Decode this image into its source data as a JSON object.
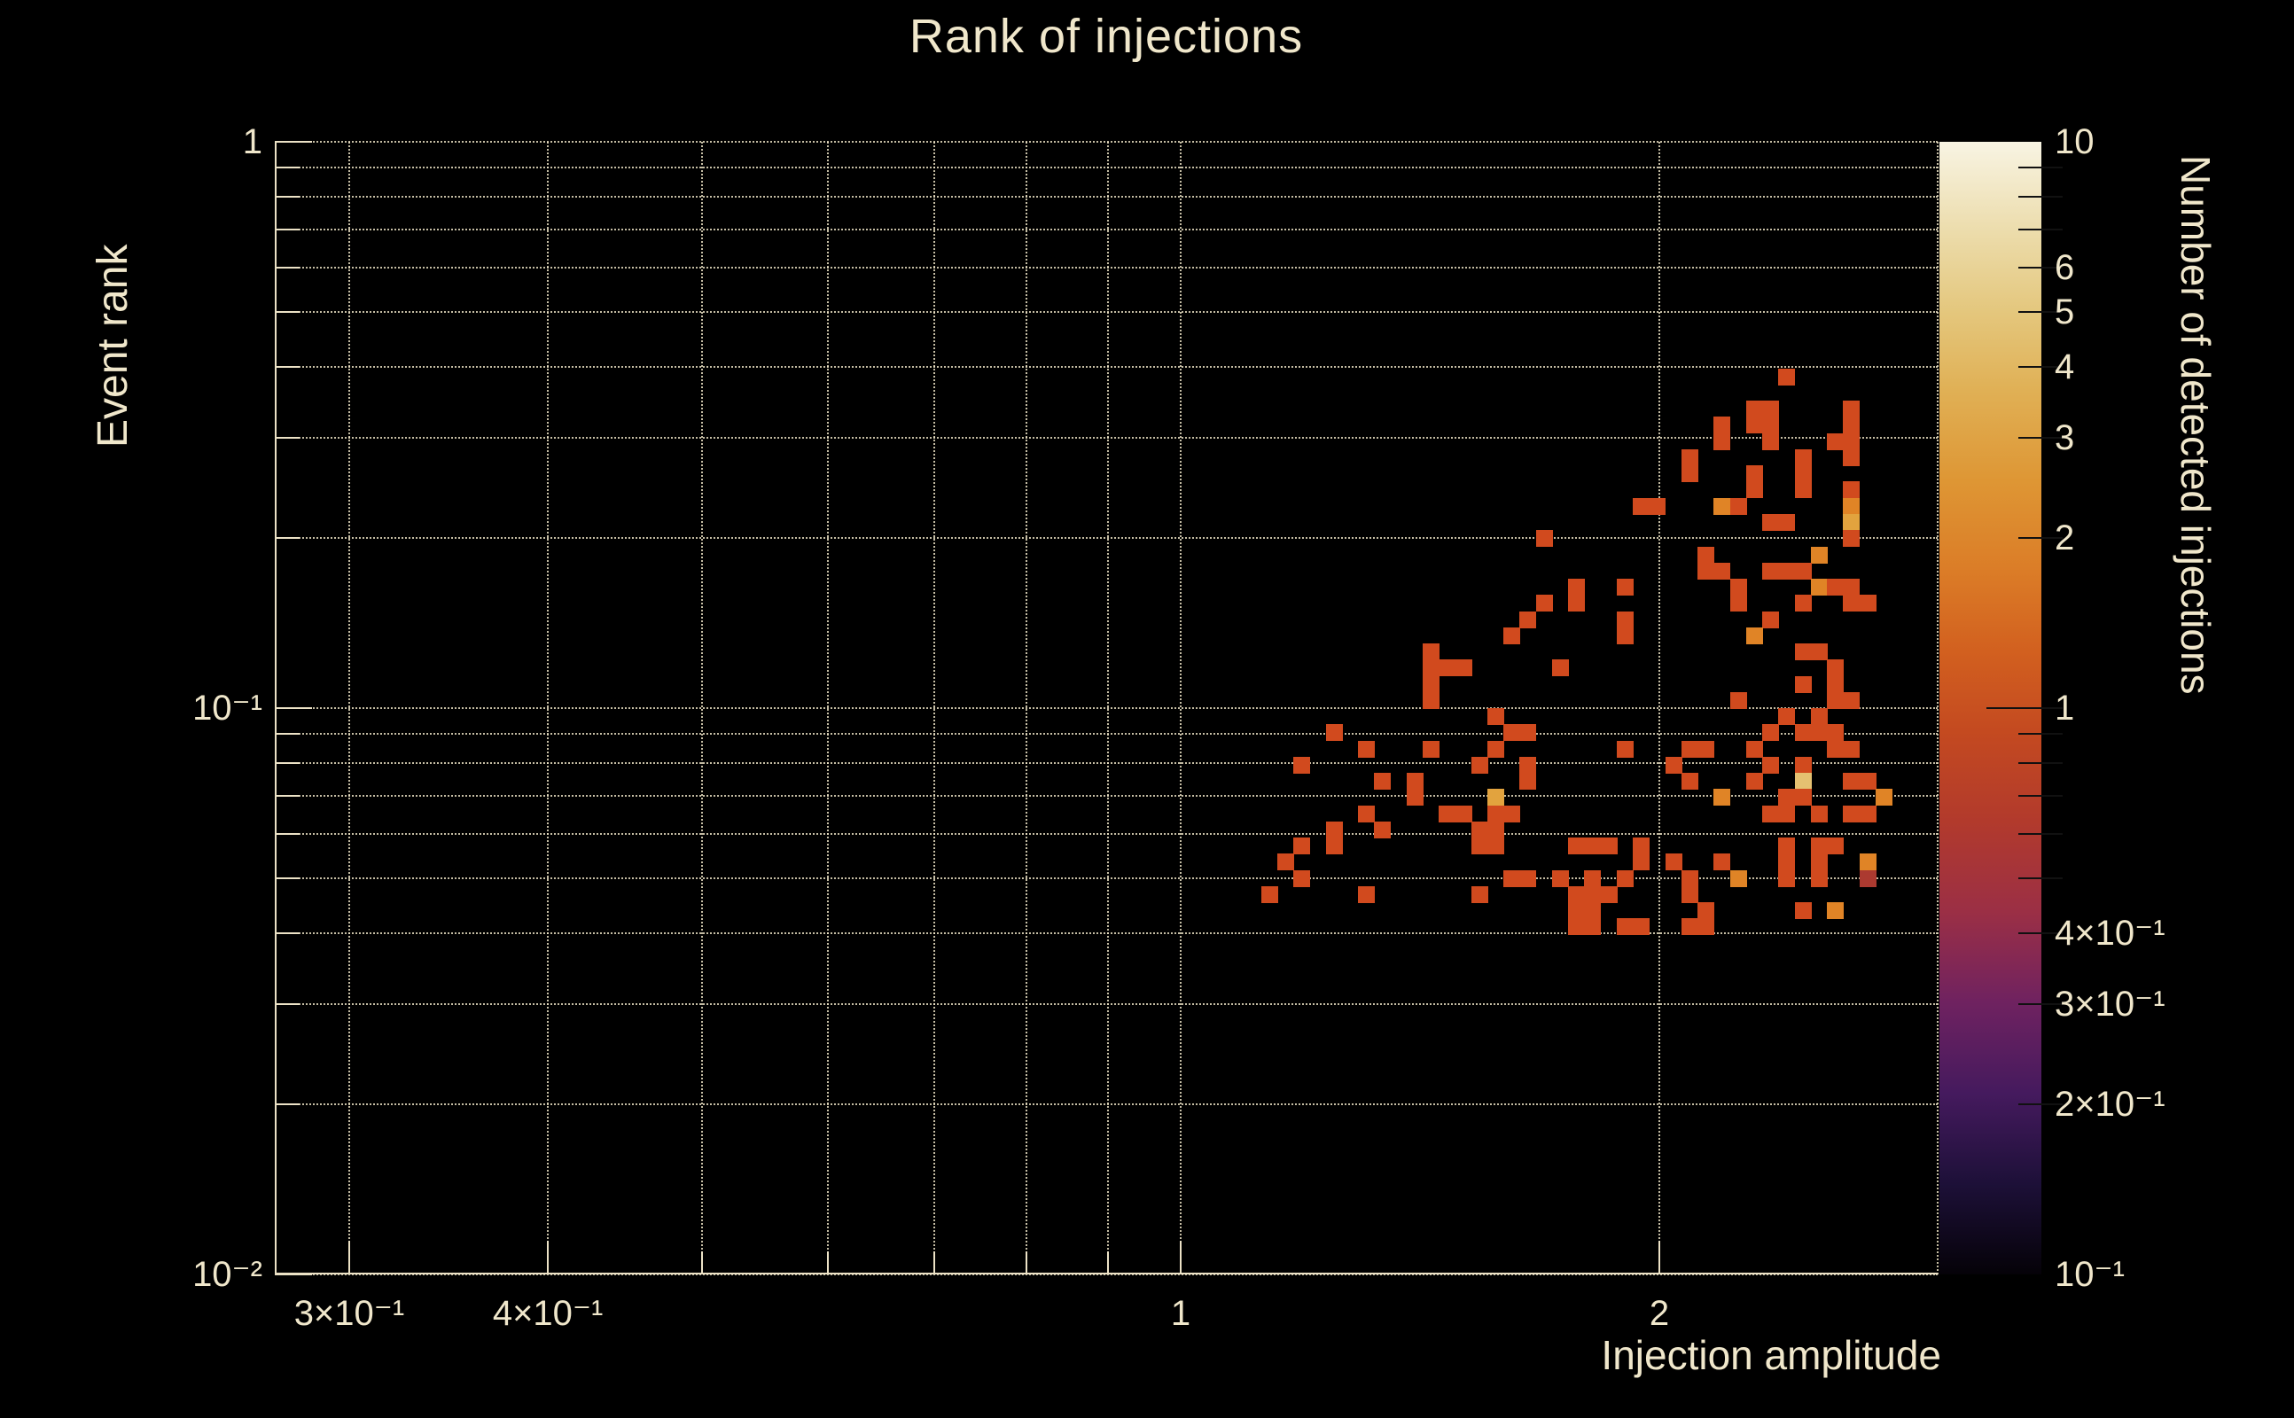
{
  "title": "Rank of injections",
  "colors": {
    "background": "#000000",
    "text": "#f0e7cb",
    "grid": "#f0e6c8",
    "frame": "#ece2c6",
    "cell_palette": {
      "0.8": "#ac3a30",
      "1": "#d14a1e",
      "2": "#e08426",
      "3": "#e2a33e",
      "5": "#e5c171"
    },
    "colorbar_top": "#f8f4e3",
    "colorbar_bottom": "#050208"
  },
  "axes": {
    "x": {
      "title": "Injection amplitude",
      "scale": "log",
      "range": [
        0.269,
        3.0
      ],
      "grid_values": [
        0.3,
        0.4,
        0.5,
        0.6,
        0.7,
        0.8,
        0.9,
        1,
        2,
        3
      ],
      "labeled_ticks": [
        {
          "v": 0.3,
          "t": "3×10⁻¹"
        },
        {
          "v": 0.4,
          "t": "4×10⁻¹"
        },
        {
          "v": 1,
          "t": "1"
        },
        {
          "v": 2,
          "t": "2"
        }
      ]
    },
    "y": {
      "title": "Event rank",
      "scale": "log",
      "range": [
        0.01,
        1.0
      ],
      "grid_values": [
        1,
        0.9,
        0.8,
        0.7,
        0.6,
        0.5,
        0.4,
        0.3,
        0.2,
        0.1,
        0.09,
        0.08,
        0.07,
        0.06,
        0.05,
        0.04,
        0.03,
        0.02,
        0.01
      ],
      "labeled_ticks": [
        {
          "v": 1,
          "t": "1"
        },
        {
          "v": 0.1,
          "t": "10⁻¹"
        },
        {
          "v": 0.01,
          "t": "10⁻²"
        }
      ]
    },
    "z": {
      "title": "Number of detected injections",
      "scale": "log",
      "range": [
        0.1,
        10
      ],
      "tick_values": [
        9,
        8,
        7,
        6,
        5,
        4,
        3,
        2,
        1,
        0.9,
        0.8,
        0.7,
        0.6,
        0.5,
        0.4,
        0.3,
        0.2
      ],
      "labeled_ticks": [
        {
          "v": 10,
          "t": "10"
        },
        {
          "v": 6,
          "t": "6"
        },
        {
          "v": 5,
          "t": "5"
        },
        {
          "v": 4,
          "t": "4"
        },
        {
          "v": 3,
          "t": "3"
        },
        {
          "v": 2,
          "t": "2"
        },
        {
          "v": 1,
          "t": "1"
        },
        {
          "v": 0.4,
          "t": "4×10⁻¹"
        },
        {
          "v": 0.3,
          "t": "3×10⁻¹"
        },
        {
          "v": 0.2,
          "t": "2×10⁻¹"
        },
        {
          "v": 0.1,
          "t": "10⁻¹"
        }
      ]
    }
  },
  "chart_data": {
    "type": "heatmap",
    "title": "Rank of injections",
    "xlabel": "Injection amplitude",
    "ylabel": "Event rank",
    "zlabel": "Number of detected injections",
    "x_range": [
      0.269,
      3.0
    ],
    "y_range": [
      0.01,
      1.0
    ],
    "z_range": [
      0.1,
      10
    ],
    "grid": "dotted, at every log subdivision",
    "legend_position": "right colorbar, log scale",
    "cells_format": "[x_bin, y_bin, count]; x_bin 0 at amplitude 0.269, bin width 0.01017 decades (amp = 0.269*10^(0.01017*x_bin)); y_bin 0 at rank 1.0 descending, bin height 0.02857 decades (rank = 10^(-0.02857*y_bin))",
    "cells": [
      [
        93,
        14,
        1
      ],
      [
        91,
        16,
        1
      ],
      [
        92,
        16,
        1
      ],
      [
        97,
        16,
        1
      ],
      [
        89,
        17,
        1
      ],
      [
        91,
        17,
        1
      ],
      [
        92,
        17,
        1
      ],
      [
        97,
        17,
        1
      ],
      [
        89,
        18,
        1
      ],
      [
        92,
        18,
        1
      ],
      [
        96,
        18,
        1
      ],
      [
        97,
        18,
        1
      ],
      [
        87,
        19,
        1
      ],
      [
        94,
        19,
        1
      ],
      [
        97,
        19,
        1
      ],
      [
        87,
        20,
        1
      ],
      [
        91,
        20,
        1
      ],
      [
        94,
        20,
        1
      ],
      [
        91,
        21,
        1
      ],
      [
        94,
        21,
        1
      ],
      [
        97,
        21,
        1
      ],
      [
        84,
        22,
        1
      ],
      [
        85,
        22,
        1
      ],
      [
        89,
        22,
        2
      ],
      [
        90,
        22,
        1
      ],
      [
        97,
        22,
        2
      ],
      [
        92,
        23,
        1
      ],
      [
        93,
        23,
        1
      ],
      [
        97,
        23,
        3
      ],
      [
        78,
        24,
        1
      ],
      [
        97,
        24,
        1
      ],
      [
        88,
        25,
        1
      ],
      [
        95,
        25,
        2
      ],
      [
        88,
        26,
        1
      ],
      [
        89,
        26,
        1
      ],
      [
        92,
        26,
        1
      ],
      [
        93,
        26,
        1
      ],
      [
        94,
        26,
        1
      ],
      [
        80,
        27,
        1
      ],
      [
        83,
        27,
        1
      ],
      [
        90,
        27,
        1
      ],
      [
        95,
        27,
        2
      ],
      [
        96,
        27,
        1
      ],
      [
        97,
        27,
        1
      ],
      [
        78,
        28,
        1
      ],
      [
        80,
        28,
        1
      ],
      [
        90,
        28,
        1
      ],
      [
        94,
        28,
        1
      ],
      [
        97,
        28,
        1
      ],
      [
        98,
        28,
        1
      ],
      [
        77,
        29,
        1
      ],
      [
        83,
        29,
        1
      ],
      [
        92,
        29,
        1
      ],
      [
        76,
        30,
        1
      ],
      [
        83,
        30,
        1
      ],
      [
        91,
        30,
        2
      ],
      [
        71,
        31,
        1
      ],
      [
        94,
        31,
        1
      ],
      [
        95,
        31,
        1
      ],
      [
        71,
        32,
        1
      ],
      [
        72,
        32,
        1
      ],
      [
        73,
        32,
        1
      ],
      [
        79,
        32,
        1
      ],
      [
        96,
        32,
        1
      ],
      [
        71,
        33,
        1
      ],
      [
        94,
        33,
        1
      ],
      [
        96,
        33,
        1
      ],
      [
        71,
        34,
        1
      ],
      [
        90,
        34,
        1
      ],
      [
        96,
        34,
        1
      ],
      [
        97,
        34,
        1
      ],
      [
        75,
        35,
        1
      ],
      [
        93,
        35,
        1
      ],
      [
        95,
        35,
        1
      ],
      [
        65,
        36,
        1
      ],
      [
        76,
        36,
        1
      ],
      [
        77,
        36,
        1
      ],
      [
        92,
        36,
        1
      ],
      [
        94,
        36,
        1
      ],
      [
        95,
        36,
        1
      ],
      [
        96,
        36,
        1
      ],
      [
        67,
        37,
        1
      ],
      [
        71,
        37,
        1
      ],
      [
        75,
        37,
        1
      ],
      [
        83,
        37,
        1
      ],
      [
        87,
        37,
        1
      ],
      [
        88,
        37,
        1
      ],
      [
        91,
        37,
        1
      ],
      [
        96,
        37,
        1
      ],
      [
        97,
        37,
        1
      ],
      [
        63,
        38,
        1
      ],
      [
        74,
        38,
        1
      ],
      [
        77,
        38,
        1
      ],
      [
        86,
        38,
        1
      ],
      [
        92,
        38,
        1
      ],
      [
        94,
        38,
        1
      ],
      [
        68,
        39,
        1
      ],
      [
        70,
        39,
        1
      ],
      [
        77,
        39,
        1
      ],
      [
        87,
        39,
        1
      ],
      [
        91,
        39,
        1
      ],
      [
        94,
        39,
        5
      ],
      [
        97,
        39,
        1
      ],
      [
        98,
        39,
        1
      ],
      [
        70,
        40,
        1
      ],
      [
        75,
        40,
        3
      ],
      [
        89,
        40,
        2
      ],
      [
        93,
        40,
        1
      ],
      [
        94,
        40,
        1
      ],
      [
        99,
        40,
        2
      ],
      [
        67,
        41,
        1
      ],
      [
        72,
        41,
        1
      ],
      [
        73,
        41,
        1
      ],
      [
        75,
        41,
        1
      ],
      [
        76,
        41,
        1
      ],
      [
        92,
        41,
        1
      ],
      [
        93,
        41,
        1
      ],
      [
        95,
        41,
        1
      ],
      [
        97,
        41,
        1
      ],
      [
        98,
        41,
        1
      ],
      [
        65,
        42,
        1
      ],
      [
        68,
        42,
        1
      ],
      [
        74,
        42,
        1
      ],
      [
        75,
        42,
        1
      ],
      [
        63,
        43,
        1
      ],
      [
        65,
        43,
        1
      ],
      [
        74,
        43,
        1
      ],
      [
        75,
        43,
        1
      ],
      [
        80,
        43,
        1
      ],
      [
        81,
        43,
        1
      ],
      [
        82,
        43,
        1
      ],
      [
        84,
        43,
        1
      ],
      [
        93,
        43,
        1
      ],
      [
        95,
        43,
        1
      ],
      [
        96,
        43,
        1
      ],
      [
        62,
        44,
        1
      ],
      [
        84,
        44,
        1
      ],
      [
        86,
        44,
        1
      ],
      [
        89,
        44,
        1
      ],
      [
        93,
        44,
        1
      ],
      [
        95,
        44,
        1
      ],
      [
        98,
        44,
        2
      ],
      [
        63,
        45,
        1
      ],
      [
        76,
        45,
        1
      ],
      [
        77,
        45,
        1
      ],
      [
        79,
        45,
        1
      ],
      [
        81,
        45,
        1
      ],
      [
        83,
        45,
        1
      ],
      [
        87,
        45,
        1
      ],
      [
        90,
        45,
        2
      ],
      [
        93,
        45,
        1
      ],
      [
        95,
        45,
        1
      ],
      [
        98,
        45,
        0.8
      ],
      [
        61,
        46,
        1
      ],
      [
        67,
        46,
        1
      ],
      [
        74,
        46,
        1
      ],
      [
        80,
        46,
        1
      ],
      [
        81,
        46,
        1
      ],
      [
        82,
        46,
        1
      ],
      [
        87,
        46,
        1
      ],
      [
        80,
        47,
        1
      ],
      [
        81,
        47,
        1
      ],
      [
        88,
        47,
        1
      ],
      [
        94,
        47,
        1
      ],
      [
        96,
        47,
        2
      ],
      [
        80,
        48,
        1
      ],
      [
        81,
        48,
        1
      ],
      [
        83,
        48,
        1
      ],
      [
        84,
        48,
        1
      ],
      [
        87,
        48,
        1
      ],
      [
        88,
        48,
        1
      ]
    ]
  }
}
